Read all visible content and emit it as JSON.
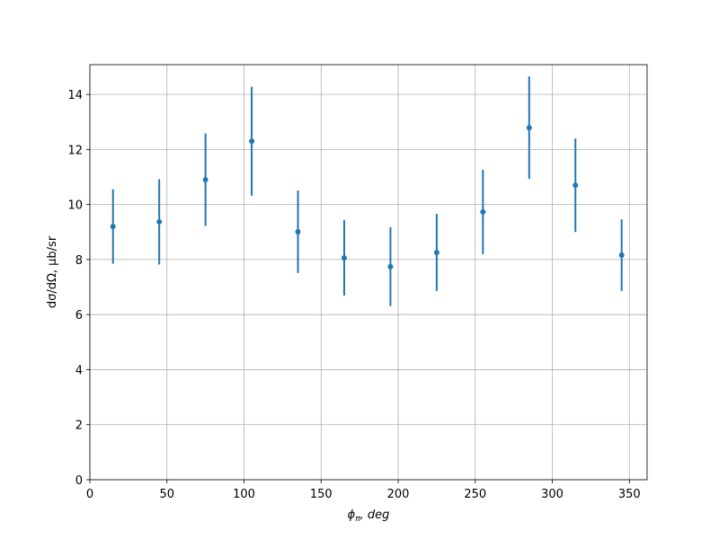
{
  "chart_data": {
    "type": "errorbar",
    "x_label": {
      "symbol": "ϕ",
      "subscript": "π",
      "rest": ", deg"
    },
    "y_label": "dσ/dΩ, μb/sr",
    "x": [
      15,
      45,
      75,
      105,
      135,
      165,
      195,
      225,
      255,
      285,
      315,
      345
    ],
    "values": [
      9.2,
      9.37,
      10.9,
      12.3,
      9.01,
      8.06,
      7.74,
      8.26,
      9.73,
      12.79,
      10.7,
      8.16
    ],
    "errors": [
      1.35,
      1.55,
      1.68,
      1.98,
      1.5,
      1.37,
      1.43,
      1.4,
      1.53,
      1.86,
      1.7,
      1.3
    ],
    "color": "#1f77b4",
    "xlim": [
      0,
      361.5
    ],
    "xticks": [
      0,
      50,
      100,
      150,
      200,
      250,
      300,
      350
    ],
    "ylim": [
      0,
      15.08
    ],
    "yticks": [
      0,
      2,
      4,
      6,
      8,
      10,
      12,
      14
    ],
    "grid": true
  }
}
